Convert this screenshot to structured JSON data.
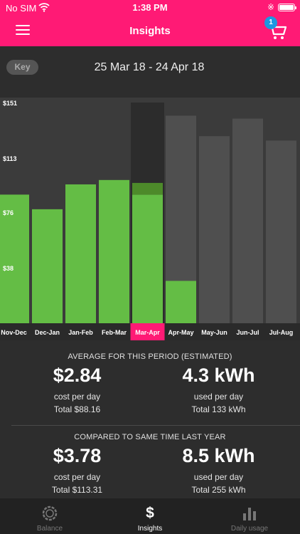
{
  "status_bar": {
    "carrier": "No SIM",
    "time": "1:38 PM"
  },
  "nav": {
    "title": "Insights",
    "cart_count": "1"
  },
  "header": {
    "key_label": "Key",
    "date_range": "25 Mar 18 - 24 Apr 18"
  },
  "chart_data": {
    "type": "bar",
    "ylim": [
      0,
      151
    ],
    "y_ticks": [
      "$151",
      "$113",
      "$76",
      "$38"
    ],
    "y_tick_values": [
      151,
      113,
      76,
      38
    ],
    "categories": [
      "Nov-Dec",
      "Dec-Jan",
      "Jan-Feb",
      "Feb-Mar",
      "Mar-Apr",
      "Apr-May",
      "May-Jun",
      "Jun-Jul",
      "Jul-Aug"
    ],
    "selected_category": "Mar-Apr",
    "series": [
      {
        "values": [
          88,
          78,
          95,
          98,
          88,
          29,
          null,
          null,
          null
        ],
        "color": "#64bd45"
      },
      {
        "values": [
          null,
          null,
          null,
          null,
          8,
          null,
          null,
          null,
          null
        ],
        "color": "#4d8a2a"
      },
      {
        "values": [
          null,
          null,
          null,
          null,
          null,
          113,
          128,
          140,
          125
        ],
        "color": "#4f4f4f"
      }
    ],
    "selected_color": "#ff1a75"
  },
  "period": {
    "title": "AVERAGE FOR THIS PERIOD (ESTIMATED)",
    "cost_value": "$2.84",
    "cost_label": "cost per day",
    "cost_total": "Total $88.16",
    "usage_value": "4.3 kWh",
    "usage_label": "used per day",
    "usage_total": "Total 133 kWh"
  },
  "last_year": {
    "title": "COMPARED TO SAME TIME LAST YEAR",
    "cost_value": "$3.78",
    "cost_label": "cost per day",
    "cost_total": "Total $113.31",
    "usage_value": "8.5 kWh",
    "usage_label": "used per day",
    "usage_total": "Total 255 kWh"
  },
  "tabs": [
    {
      "label": "Balance",
      "icon": "balance-ring-icon",
      "active": false
    },
    {
      "label": "Insights",
      "icon": "dollar-icon",
      "active": true
    },
    {
      "label": "Daily usage",
      "icon": "bar-chart-icon",
      "active": false
    }
  ]
}
